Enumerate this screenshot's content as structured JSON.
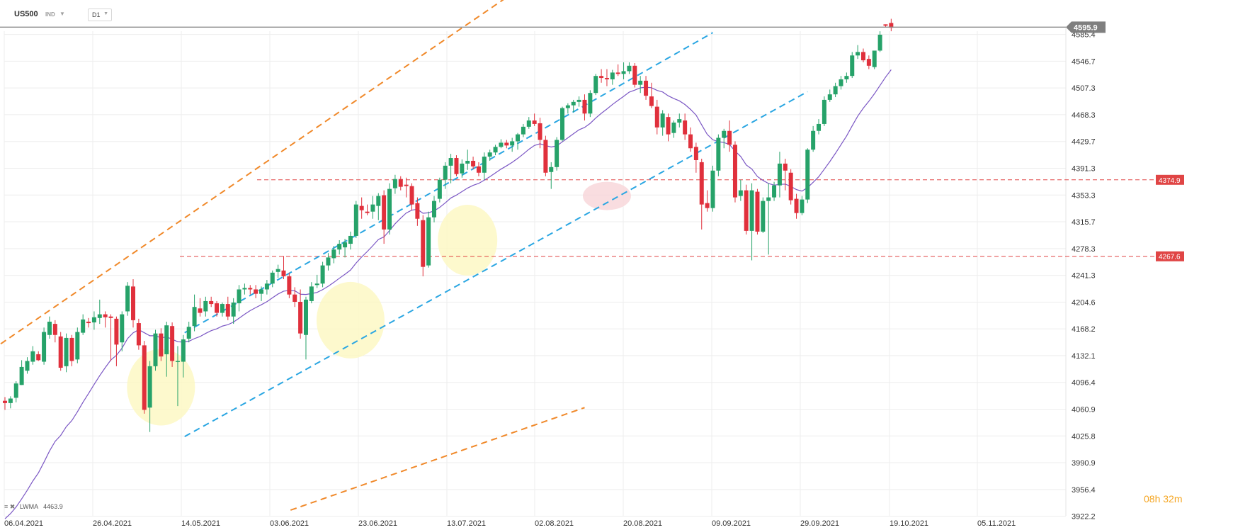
{
  "header": {
    "symbol": "US500",
    "instrument_type": "IND",
    "timeframe": "D1"
  },
  "legend": {
    "indicator": "LWMA",
    "value": "4463.9"
  },
  "timer": {
    "h": "08",
    "h_unit": "h",
    "m": "32",
    "m_unit": "m"
  },
  "colors": {
    "bull": "#26a269",
    "bear": "#e0303c",
    "lwma": "#7b57c4",
    "channel": "#2aa6e2",
    "outer": "#f0892a",
    "level": "#e04545",
    "highlight_yellow": "#fdf7c0",
    "highlight_pink": "#f8d5d8"
  },
  "chart_data": {
    "type": "candlestick",
    "title": "",
    "y_range": [
      3922.2,
      4640
    ],
    "y_ticks": [
      4585.4,
      4546.7,
      4507.3,
      4468.3,
      4429.7,
      4391.3,
      4353.3,
      4315.7,
      4278.3,
      4241.3,
      4204.6,
      4168.2,
      4132.1,
      4096.4,
      4060.9,
      4025.8,
      3990.9,
      3956.4,
      3922.2
    ],
    "x_labels": [
      "06.04.2021",
      "26.04.2021",
      "14.05.2021",
      "03.06.2021",
      "23.06.2021",
      "13.07.2021",
      "02.08.2021",
      "20.08.2021",
      "09.09.2021",
      "29.09.2021",
      "19.10.2021",
      "05.11.2021"
    ],
    "current_price": "4595.9",
    "horizontal_levels": [
      {
        "label": "4374.9",
        "value": 4374.9
      },
      {
        "label": "4267.6",
        "value": 4267.6
      }
    ],
    "candles": [
      [
        4072.0,
        4077.0,
        4060.0,
        4069.0
      ],
      [
        4069.0,
        4078.0,
        4062.0,
        4075.0
      ],
      [
        4076.0,
        4098.0,
        4070.0,
        4095.0
      ],
      [
        4093.0,
        4126.0,
        4093.0,
        4117.0
      ],
      [
        4112.0,
        4130.0,
        4108.0,
        4125.0
      ],
      [
        4124.0,
        4145.0,
        4120.0,
        4138.0
      ],
      [
        4134.0,
        4138.0,
        4125.0,
        4126.0
      ],
      [
        4124.0,
        4170.0,
        4120.0,
        4164.0
      ],
      [
        4160.0,
        4185.0,
        4155.0,
        4178.0
      ],
      [
        4175.0,
        4180.0,
        4150.0,
        4160.0
      ],
      [
        4158.0,
        4164.0,
        4112.0,
        4116.0
      ],
      [
        4118.0,
        4162.0,
        4110.0,
        4156.0
      ],
      [
        4156.0,
        4160.0,
        4118.0,
        4125.0
      ],
      [
        4127.0,
        4170.0,
        4122.0,
        4164.0
      ],
      [
        4163.0,
        4188.0,
        4160.0,
        4181.0
      ],
      [
        4178.0,
        4183.0,
        4170.0,
        4176.0
      ],
      [
        4177.0,
        4192.0,
        4167.0,
        4184.0
      ],
      [
        4183.0,
        4208.0,
        4175.0,
        4188.0
      ],
      [
        4188.0,
        4192.0,
        4170.0,
        4184.0
      ],
      [
        4185.0,
        4188.0,
        4125.0,
        4183.0
      ],
      [
        4182.0,
        4185.0,
        4118.0,
        4147.0
      ],
      [
        4150.0,
        4192.0,
        4138.0,
        4188.0
      ],
      [
        4192.0,
        4232.0,
        4186.0,
        4227.0
      ],
      [
        4226.0,
        4236.0,
        4170.0,
        4180.0
      ],
      [
        4176.0,
        4182.0,
        4140.0,
        4146.0
      ],
      [
        4146.0,
        4152.0,
        4055.0,
        4060.0
      ],
      [
        4063.0,
        4125.0,
        4031.0,
        4118.0
      ],
      [
        4118.0,
        4167.0,
        4112.0,
        4162.0
      ],
      [
        4162.0,
        4169.0,
        4125.0,
        4131.0
      ],
      [
        4134.0,
        4178.0,
        4104.0,
        4173.0
      ],
      [
        4172.0,
        4177.0,
        4117.0,
        4125.0
      ],
      [
        4125.0,
        4145.0,
        4065.0,
        4125.0
      ],
      [
        4124.0,
        4160.0,
        4103.0,
        4154.0
      ],
      [
        4155.0,
        4178.0,
        4150.0,
        4171.0
      ],
      [
        4172.0,
        4215.0,
        4165.0,
        4198.0
      ],
      [
        4196.0,
        4210.0,
        4185.0,
        4190.0
      ],
      [
        4192.0,
        4212.0,
        4185.0,
        4206.0
      ],
      [
        4206.0,
        4212.0,
        4198.0,
        4202.0
      ],
      [
        4203.0,
        4206.0,
        4185.0,
        4190.0
      ],
      [
        4190.0,
        4204.0,
        4185.0,
        4202.0
      ],
      [
        4202.0,
        4212.0,
        4180.0,
        4185.0
      ],
      [
        4185.0,
        4210.0,
        4175.0,
        4204.0
      ],
      [
        4203.0,
        4228.0,
        4192.0,
        4222.0
      ],
      [
        4222.0,
        4230.0,
        4215.0,
        4224.0
      ],
      [
        4224.0,
        4228.0,
        4215.0,
        4222.0
      ],
      [
        4222.0,
        4228.0,
        4210.0,
        4216.0
      ],
      [
        4216.0,
        4226.0,
        4206.0,
        4222.0
      ],
      [
        4222.0,
        4235.0,
        4215.0,
        4230.0
      ],
      [
        4230.0,
        4248.0,
        4225.0,
        4245.0
      ],
      [
        4246.0,
        4256.0,
        4238.0,
        4250.0
      ],
      [
        4248.0,
        4268.0,
        4236.0,
        4240.0
      ],
      [
        4240.0,
        4245.0,
        4210.0,
        4215.0
      ],
      [
        4215.0,
        4225.0,
        4198.0,
        4205.0
      ],
      [
        4205.0,
        4222.0,
        4155.0,
        4162.0
      ],
      [
        4160.0,
        4212.0,
        4127.0,
        4208.0
      ],
      [
        4206.0,
        4232.0,
        4203.0,
        4226.0
      ],
      [
        4228.0,
        4242.0,
        4224.0,
        4230.0
      ],
      [
        4230.0,
        4260.0,
        4225.0,
        4255.0
      ],
      [
        4255.0,
        4272.0,
        4248.0,
        4266.0
      ],
      [
        4265.0,
        4282.0,
        4258.0,
        4277.0
      ],
      [
        4277.0,
        4290.0,
        4270.0,
        4285.0
      ],
      [
        4280.0,
        4292.0,
        4266.0,
        4287.0
      ],
      [
        4285.0,
        4302.0,
        4277.0,
        4296.0
      ],
      [
        4296.0,
        4345.0,
        4293.0,
        4340.0
      ],
      [
        4338.0,
        4350.0,
        4320.0,
        4332.0
      ],
      [
        4330.0,
        4340.0,
        4325.0,
        4328.0
      ],
      [
        4330.0,
        4352.0,
        4320.0,
        4340.0
      ],
      [
        4338.0,
        4356.0,
        4318.0,
        4352.0
      ],
      [
        4353.0,
        4360.0,
        4285.0,
        4305.0
      ],
      [
        4305.0,
        4370.0,
        4298.0,
        4362.0
      ],
      [
        4363.0,
        4382.0,
        4355.0,
        4376.0
      ],
      [
        4376.0,
        4380.0,
        4360.0,
        4365.0
      ],
      [
        4368.0,
        4378.0,
        4350.0,
        4366.0
      ],
      [
        4366.0,
        4370.0,
        4332.0,
        4340.0
      ],
      [
        4342.0,
        4350.0,
        4310.0,
        4320.0
      ],
      [
        4318.0,
        4325.0,
        4240.0,
        4253.0
      ],
      [
        4255.0,
        4330.0,
        4252.0,
        4322.0
      ],
      [
        4322.0,
        4352.0,
        4315.0,
        4345.0
      ],
      [
        4348.0,
        4378.0,
        4343.0,
        4375.0
      ],
      [
        4375.0,
        4400.0,
        4362.0,
        4395.0
      ],
      [
        4395.0,
        4412.0,
        4370.0,
        4406.0
      ],
      [
        4406.0,
        4410.0,
        4380.0,
        4383.0
      ],
      [
        4384.0,
        4404.0,
        4378.0,
        4398.0
      ],
      [
        4398.0,
        4418.0,
        4389.0,
        4402.0
      ],
      [
        4402.0,
        4408.0,
        4390.0,
        4394.0
      ],
      [
        4394.0,
        4400.0,
        4380.0,
        4385.0
      ],
      [
        4385.0,
        4414.0,
        4375.0,
        4408.0
      ],
      [
        4408.0,
        4418.0,
        4402.0,
        4414.0
      ],
      [
        4414.0,
        4425.0,
        4410.0,
        4422.0
      ],
      [
        4422.0,
        4433.0,
        4420.0,
        4428.0
      ],
      [
        4428.0,
        4432.0,
        4420.0,
        4424.0
      ],
      [
        4424.0,
        4435.0,
        4415.0,
        4430.0
      ],
      [
        4430.0,
        4442.0,
        4418.0,
        4440.0
      ],
      [
        4440.0,
        4455.0,
        4436.0,
        4451.0
      ],
      [
        4451.0,
        4465.0,
        4448.0,
        4460.0
      ],
      [
        4460.0,
        4470.0,
        4452.0,
        4455.0
      ],
      [
        4456.0,
        4464.0,
        4420.0,
        4432.0
      ],
      [
        4432.0,
        4438.0,
        4380.0,
        4385.0
      ],
      [
        4386.0,
        4400.0,
        4362.0,
        4393.0
      ],
      [
        4393.0,
        4436.0,
        4388.0,
        4432.0
      ],
      [
        4432.0,
        4480.0,
        4430.0,
        4478.0
      ],
      [
        4478.0,
        4485.0,
        4470.0,
        4482.0
      ],
      [
        4482.0,
        4490.0,
        4472.0,
        4487.0
      ],
      [
        4487.0,
        4495.0,
        4480.0,
        4490.0
      ],
      [
        4490.0,
        4498.0,
        4460.0,
        4470.0
      ],
      [
        4470.0,
        4504.0,
        4465.0,
        4500.0
      ],
      [
        4500.0,
        4528.0,
        4497.0,
        4525.0
      ],
      [
        4525.0,
        4535.0,
        4515.0,
        4522.0
      ],
      [
        4522.0,
        4535.0,
        4510.0,
        4520.0
      ],
      [
        4520.0,
        4534.0,
        4512.0,
        4530.0
      ],
      [
        4530.0,
        4542.0,
        4525.0,
        4528.0
      ],
      [
        4528.0,
        4545.0,
        4520.0,
        4532.0
      ],
      [
        4532.0,
        4545.0,
        4528.0,
        4540.0
      ],
      [
        4540.0,
        4544.0,
        4508.0,
        4512.0
      ],
      [
        4512.0,
        4525.0,
        4500.0,
        4518.0
      ],
      [
        4518.0,
        4525.0,
        4490.0,
        4496.0
      ],
      [
        4495.0,
        4515.0,
        4478.0,
        4481.0
      ],
      [
        4480.0,
        4490.0,
        4440.0,
        4450.0
      ],
      [
        4450.0,
        4475.0,
        4438.0,
        4470.0
      ],
      [
        4465.0,
        4470.0,
        4430.0,
        4440.0
      ],
      [
        4442.0,
        4460.0,
        4435.0,
        4457.0
      ],
      [
        4457.0,
        4470.0,
        4450.0,
        4462.0
      ],
      [
        4460.0,
        4470.0,
        4432.0,
        4440.0
      ],
      [
        4440.0,
        4450.0,
        4415.0,
        4420.0
      ],
      [
        4422.0,
        4428.0,
        4385.0,
        4403.0
      ],
      [
        4400.0,
        4405.0,
        4305.0,
        4340.0
      ],
      [
        4342.0,
        4360.0,
        4330.0,
        4335.0
      ],
      [
        4335.0,
        4395.0,
        4330.0,
        4388.0
      ],
      [
        4388.0,
        4440.0,
        4380.0,
        4435.0
      ],
      [
        4435.0,
        4448.0,
        4420.0,
        4445.0
      ],
      [
        4445.0,
        4460.0,
        4415.0,
        4425.0
      ],
      [
        4425.0,
        4430.0,
        4343.0,
        4350.0
      ],
      [
        4352.0,
        4375.0,
        4345.0,
        4360.0
      ],
      [
        4360.0,
        4368.0,
        4298.0,
        4303.0
      ],
      [
        4303.0,
        4370.0,
        4262.0,
        4360.0
      ],
      [
        4358.0,
        4362.0,
        4298.0,
        4302.0
      ],
      [
        4302.0,
        4350.0,
        4300.0,
        4345.0
      ],
      [
        4345.0,
        4370.0,
        4270.0,
        4350.0
      ],
      [
        4350.0,
        4372.0,
        4345.0,
        4367.0
      ],
      [
        4367.0,
        4415.0,
        4350.0,
        4398.0
      ],
      [
        4398.0,
        4405.0,
        4360.0,
        4388.0
      ],
      [
        4385.0,
        4390.0,
        4340.0,
        4346.0
      ],
      [
        4348.0,
        4355.0,
        4320.0,
        4328.0
      ],
      [
        4328.0,
        4352.0,
        4325.0,
        4347.0
      ],
      [
        4347.0,
        4420.0,
        4342.0,
        4418.0
      ],
      [
        4418.0,
        4452.0,
        4415.0,
        4445.0
      ],
      [
        4445.0,
        4462.0,
        4440.0,
        4455.0
      ],
      [
        4455.0,
        4495.0,
        4452.0,
        4490.0
      ],
      [
        4490.0,
        4505.0,
        4487.0,
        4498.0
      ],
      [
        4498.0,
        4515.0,
        4494.0,
        4510.0
      ],
      [
        4510.0,
        4525.0,
        4505.0,
        4520.0
      ],
      [
        4520.0,
        4530.0,
        4515.0,
        4525.0
      ],
      [
        4525.0,
        4560.0,
        4522.0,
        4555.0
      ],
      [
        4555.0,
        4570.0,
        4550.0,
        4560.0
      ],
      [
        4560.0,
        4565.0,
        4545.0,
        4548.0
      ],
      [
        4550.0,
        4555.0,
        4535.0,
        4540.0
      ],
      [
        4538.0,
        4560.0,
        4535.0,
        4562.0
      ],
      [
        4562.0,
        4590.0,
        4560.0,
        4585.0
      ],
      [
        4600.0,
        4600.0,
        4596.0,
        4598.0
      ],
      [
        4602.0,
        4608.0,
        4590.0,
        4595.0
      ]
    ],
    "lwma": [
      4463.9
    ]
  }
}
